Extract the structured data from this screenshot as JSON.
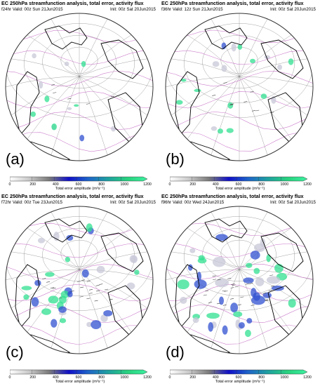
{
  "panels": [
    {
      "id": "a",
      "title": "EC 250hPa streamfunction analysis, total error, activity flux",
      "valid": "f24hr Valid: 00z Sun 21Jun2015",
      "init": "Init: 00z Sat 20Jun2015",
      "label": "(a)",
      "error_level": 0.15
    },
    {
      "id": "b",
      "title": "EC 250hPa streamfunction analysis, total error, activity flux",
      "valid": "f36hr Valid: 12z Sun 21Jun2015",
      "init": "Init: 00z Sat 20Jun2015",
      "label": "(b)",
      "error_level": 0.3
    },
    {
      "id": "c",
      "title": "EC 250hPa streamfunction analysis, total error, activity flux",
      "valid": "f72hr Valid: 00z Tue 23Jun2015",
      "init": "Init: 00z Sat 20Jun2015",
      "label": "(c)",
      "error_level": 0.65
    },
    {
      "id": "d",
      "title": "EC 250hPa streamfunction analysis, total error, activity flux",
      "valid": "f96hr Valid: 00z Wed 24Jun2015",
      "init": "Init: 00z Sat 20Jun2015",
      "label": "(d)",
      "error_level": 0.9
    }
  ],
  "colorbar": {
    "ticks": [
      "0",
      "200",
      "400",
      "600",
      "800",
      "1000",
      "1200"
    ],
    "label": "Total error amplitude (m²s⁻¹)",
    "stops": [
      "#ffffff",
      "#c8c8c8",
      "#7a7a7a",
      "#1010c8",
      "#1e64c8",
      "#1ea0a0",
      "#28d27d",
      "#3cf0a0"
    ]
  },
  "colors": {
    "contour": "#c060c0",
    "coast": "#000000",
    "grid": "#8a8a8a",
    "error_low": "#c8c8d8",
    "error_mid": "#3050d0",
    "error_high": "#30e090"
  }
}
